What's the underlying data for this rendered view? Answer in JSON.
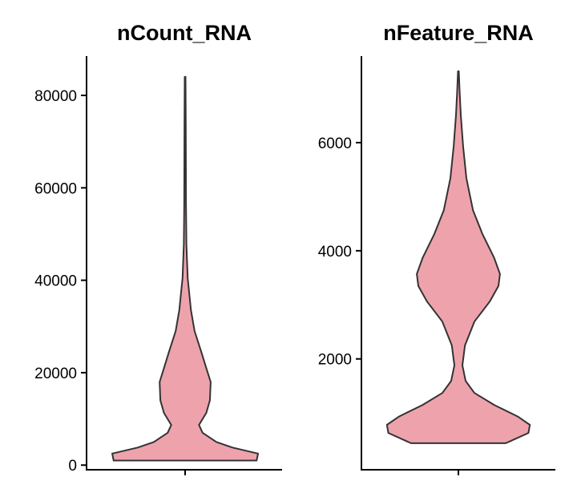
{
  "chart_data": [
    {
      "type": "violin",
      "title": "nCount_RNA",
      "xlabel": "",
      "ylabel": "",
      "ylim": [
        -1000,
        88500
      ],
      "yticks": [
        0,
        20000,
        40000,
        60000,
        80000
      ],
      "ytick_labels": [
        "0",
        "20000",
        "40000",
        "60000",
        "80000"
      ],
      "fill": "#EEA3AC",
      "density_profile": [
        [
          1000,
          0.98
        ],
        [
          2500,
          1.0
        ],
        [
          3800,
          0.65
        ],
        [
          5000,
          0.43
        ],
        [
          7000,
          0.24
        ],
        [
          8700,
          0.19
        ],
        [
          11300,
          0.29
        ],
        [
          14000,
          0.34
        ],
        [
          18000,
          0.35
        ],
        [
          21000,
          0.29
        ],
        [
          24600,
          0.22
        ],
        [
          29000,
          0.13
        ],
        [
          33500,
          0.08
        ],
        [
          40500,
          0.035
        ],
        [
          47800,
          0.018
        ],
        [
          56500,
          0.012
        ],
        [
          74000,
          0.009
        ],
        [
          84000,
          0.005
        ]
      ]
    },
    {
      "type": "violin",
      "title": "nFeature_RNA",
      "xlabel": "",
      "ylabel": "",
      "ylim": [
        -50,
        7600
      ],
      "yticks": [
        2000,
        4000,
        6000
      ],
      "ytick_labels": [
        "2000",
        "4000",
        "6000"
      ],
      "fill": "#EEA3AC",
      "density_profile": [
        [
          440,
          0.65
        ],
        [
          630,
          0.96
        ],
        [
          780,
          0.98
        ],
        [
          930,
          0.82
        ],
        [
          1150,
          0.49
        ],
        [
          1370,
          0.22
        ],
        [
          1590,
          0.1
        ],
        [
          1880,
          0.055
        ],
        [
          2250,
          0.09
        ],
        [
          2690,
          0.22
        ],
        [
          3060,
          0.43
        ],
        [
          3350,
          0.55
        ],
        [
          3570,
          0.57
        ],
        [
          3870,
          0.49
        ],
        [
          4310,
          0.33
        ],
        [
          4750,
          0.2
        ],
        [
          5340,
          0.11
        ],
        [
          5930,
          0.065
        ],
        [
          6510,
          0.033
        ],
        [
          6960,
          0.016
        ],
        [
          7320,
          0.005
        ]
      ]
    }
  ]
}
